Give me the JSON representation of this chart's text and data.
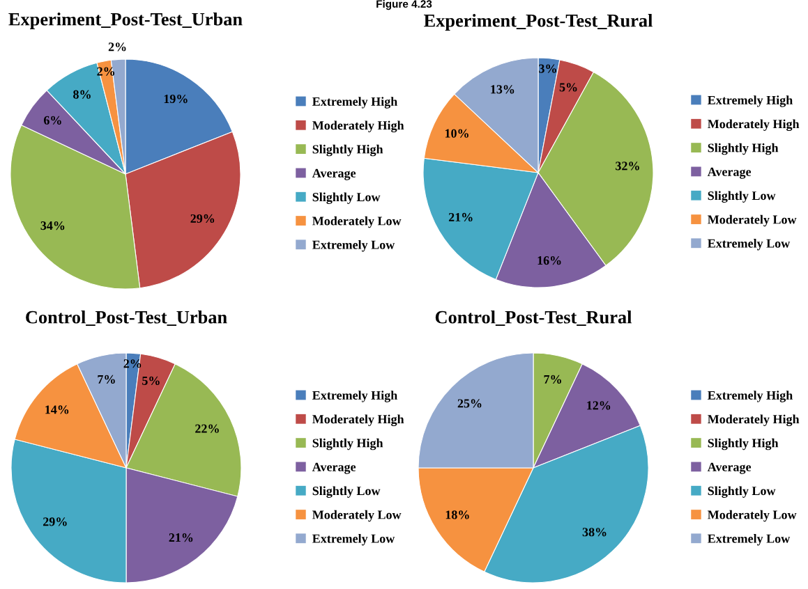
{
  "chart_data": [
    {
      "type": "pie",
      "title": "Experiment_Post-Test_Urban",
      "annotations": [
        "Figure 4.23"
      ],
      "categories": [
        "Extremely High",
        "Moderately High",
        "Slightly High",
        "Average",
        "Slightly Low",
        "Moderately Low",
        "Extremely Low"
      ],
      "values": [
        19,
        29,
        34,
        6,
        8,
        2,
        2
      ],
      "value_labels": [
        "19%",
        "29%",
        "34%",
        "6%",
        "8%",
        "2%",
        "2%"
      ],
      "colors": [
        "#4a7ebb",
        "#be4b48",
        "#98b954",
        "#7d60a0",
        "#46aac5",
        "#f69240",
        "#93a9cf"
      ],
      "legend": "right"
    },
    {
      "type": "pie",
      "title": "Experiment_Post-Test_Rural",
      "categories": [
        "Extremely High",
        "Moderately High",
        "Slightly High",
        "Average",
        "Slightly Low",
        "Moderately Low",
        "Extremely Low"
      ],
      "values": [
        3,
        5,
        32,
        16,
        21,
        10,
        13
      ],
      "value_labels": [
        "3%",
        "5%",
        "32%",
        "16%",
        "21%",
        "10%",
        "13%"
      ],
      "colors": [
        "#4a7ebb",
        "#be4b48",
        "#98b954",
        "#7d60a0",
        "#46aac5",
        "#f69240",
        "#93a9cf"
      ],
      "legend": "right"
    },
    {
      "type": "pie",
      "title": "Control_Post-Test_Urban",
      "categories": [
        "Extremely High",
        "Moderately High",
        "Slightly High",
        "Average",
        "Slightly Low",
        "Moderately Low",
        "Extremely Low"
      ],
      "values": [
        2,
        5,
        22,
        21,
        29,
        14,
        7
      ],
      "value_labels": [
        "2%",
        "5%",
        "22%",
        "21%",
        "29%",
        "14%",
        "7%"
      ],
      "colors": [
        "#4a7ebb",
        "#be4b48",
        "#98b954",
        "#7d60a0",
        "#46aac5",
        "#f69240",
        "#93a9cf"
      ],
      "legend": "right"
    },
    {
      "type": "pie",
      "title": "Control_Post-Test_Rural",
      "categories": [
        "Extremely High",
        "Moderately High",
        "Slightly High",
        "Average",
        "Slightly Low",
        "Moderately Low",
        "Extremely Low"
      ],
      "values": [
        0,
        0,
        7,
        12,
        38,
        18,
        25
      ],
      "value_labels": [
        null,
        null,
        "7%",
        "12%",
        "38%",
        "18%",
        "25%"
      ],
      "colors": [
        "#4a7ebb",
        "#be4b48",
        "#98b954",
        "#7d60a0",
        "#46aac5",
        "#f69240",
        "#93a9cf"
      ],
      "legend": "right"
    }
  ]
}
